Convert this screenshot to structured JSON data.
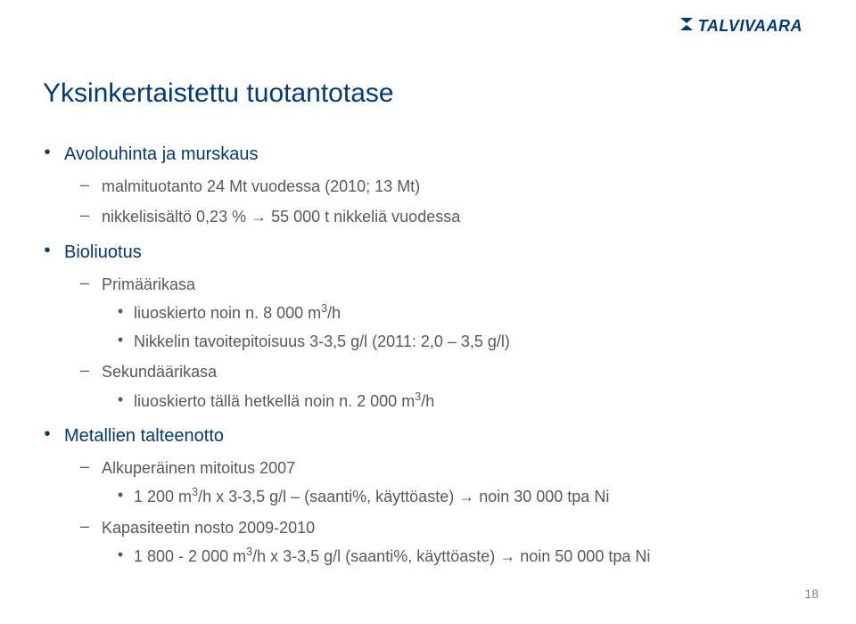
{
  "colors": {
    "brand": "#003a78",
    "title": "#003a78",
    "lvl1_bullet": "#003a78",
    "lvl1_text": "#003a78",
    "lvl2_text": "#595959",
    "lvl3_text": "#595959",
    "pagenum": "#808080",
    "background": "#ffffff"
  },
  "fontsizes": {
    "logo": 18,
    "title": 30,
    "lvl1": 20,
    "lvl2": 18,
    "lvl3": 18,
    "pagenum": 14
  },
  "logo": {
    "text": "TALVIVAARA"
  },
  "title": "Yksinkertaistettu tuotantotase",
  "content": [
    {
      "text": "Avolouhinta ja murskaus",
      "children": [
        {
          "text": "malmituotanto 24 Mt vuodessa (2010; 13 Mt)"
        },
        {
          "text": "nikkelisisältö 0,23 % → 55 000 t nikkeliä vuodessa"
        }
      ]
    },
    {
      "text": "Bioliuotus",
      "children": [
        {
          "text": "Primäärikasa",
          "children": [
            {
              "text_html": "liuoskierto noin n. 8 000 m<sup>3</sup>/h"
            },
            {
              "text": "Nikkelin tavoitepitoisuus 3-3,5 g/l (2011: 2,0 – 3,5 g/l)"
            }
          ]
        },
        {
          "text": "Sekundäärikasa",
          "children": [
            {
              "text_html": "liuoskierto tällä hetkellä noin n. 2 000 m<sup>3</sup>/h"
            }
          ]
        }
      ]
    },
    {
      "text": "Metallien talteenotto",
      "children": [
        {
          "text": "Alkuperäinen mitoitus 2007",
          "children": [
            {
              "text_html": "1 200 m<sup>3</sup>/h x 3-3,5 g/l – (saanti%, käyttöaste) → noin 30 000 tpa Ni"
            }
          ]
        },
        {
          "text": "Kapasiteetin nosto 2009-2010",
          "children": [
            {
              "text_html": "1 800 - 2 000 m<sup>3</sup>/h x 3-3,5 g/l (saanti%, käyttöaste) → noin 50 000 tpa Ni"
            }
          ]
        }
      ]
    }
  ],
  "pagenum": "18"
}
